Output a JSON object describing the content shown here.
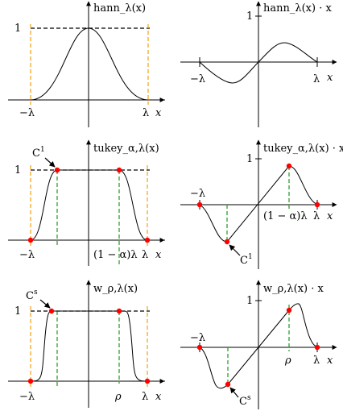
{
  "chart_data": [
    {
      "type": "line",
      "panel": "top-left",
      "ylabel": "hann_λ(x)",
      "xlabel": "x",
      "xticks": [
        "−λ",
        "λ"
      ],
      "yticks": [
        "1"
      ],
      "x": [
        -1,
        -0.75,
        -0.5,
        -0.25,
        0,
        0.25,
        0.5,
        0.75,
        1
      ],
      "y": [
        0,
        0.146,
        0.5,
        0.854,
        1,
        0.854,
        0.5,
        0.146,
        0
      ],
      "annotations": [
        "dashed line y=1",
        "orange dashed verticals at x=±λ"
      ]
    },
    {
      "type": "line",
      "panel": "top-right",
      "ylabel": "hann_λ(x) · x",
      "xlabel": "x",
      "xticks": [
        "−λ",
        "λ"
      ],
      "yticks": [
        "1"
      ],
      "x": [
        -1,
        -0.75,
        -0.5,
        -0.25,
        0,
        0.25,
        0.5,
        0.75,
        1
      ],
      "y": [
        0,
        -0.11,
        -0.25,
        -0.21,
        0,
        0.21,
        0.25,
        0.11,
        0
      ]
    },
    {
      "type": "line",
      "panel": "middle-left",
      "ylabel": "tukey_α,λ(x)",
      "xlabel": "x",
      "xticks": [
        "−λ",
        "(1 − α)λ",
        "λ"
      ],
      "yticks": [
        "1"
      ],
      "x": [
        -1,
        -0.75,
        -0.5,
        0,
        0.5,
        0.75,
        1
      ],
      "y": [
        0,
        0.5,
        1,
        1,
        1,
        0.5,
        0
      ],
      "annotations": [
        "C¹",
        "red marker points at x = −λ, −(1−α)λ, (1−α)λ, λ",
        "green dashed verticals at ±(1−α)λ"
      ]
    },
    {
      "type": "line",
      "panel": "middle-right",
      "ylabel": "tukey_α,λ(x) · x",
      "xlabel": "x",
      "xticks": [
        "−λ",
        "(1 − α)λ",
        "λ"
      ],
      "yticks": [
        "1"
      ],
      "x": [
        -1,
        -0.75,
        -0.5,
        0,
        0.5,
        0.75,
        1
      ],
      "y": [
        0,
        -0.375,
        -0.5,
        0,
        0.5,
        0.375,
        0
      ],
      "annotations": [
        "C¹"
      ]
    },
    {
      "type": "line",
      "panel": "bottom-left",
      "ylabel": "w_ρ,λ(x)",
      "xlabel": "x",
      "xticks": [
        "−λ",
        "ρ",
        "λ"
      ],
      "yticks": [
        "1"
      ],
      "x": [
        -1,
        -0.75,
        -0.55,
        0,
        0.55,
        0.75,
        1
      ],
      "y": [
        0,
        0.5,
        1,
        1,
        1,
        0.5,
        0
      ],
      "annotations": [
        "Cˢ",
        "red marker points at x = −λ, −ρ, ρ, λ",
        "green dashed verticals at ±ρ"
      ]
    },
    {
      "type": "line",
      "panel": "bottom-right",
      "ylabel": "w_ρ,λ(x) · x",
      "xlabel": "x",
      "xticks": [
        "−λ",
        "ρ",
        "λ"
      ],
      "yticks": [
        "1"
      ],
      "x": [
        -1,
        -0.75,
        -0.55,
        0,
        0.55,
        0.75,
        1
      ],
      "y": [
        0,
        -0.375,
        -0.55,
        0,
        0.55,
        0.375,
        0
      ],
      "annotations": [
        "Cˢ"
      ]
    }
  ],
  "colors": {
    "curve": "#000000",
    "edge_dashed": "#f5a623",
    "inner_dashed": "#2ca02c",
    "marker": "#ff0000"
  }
}
